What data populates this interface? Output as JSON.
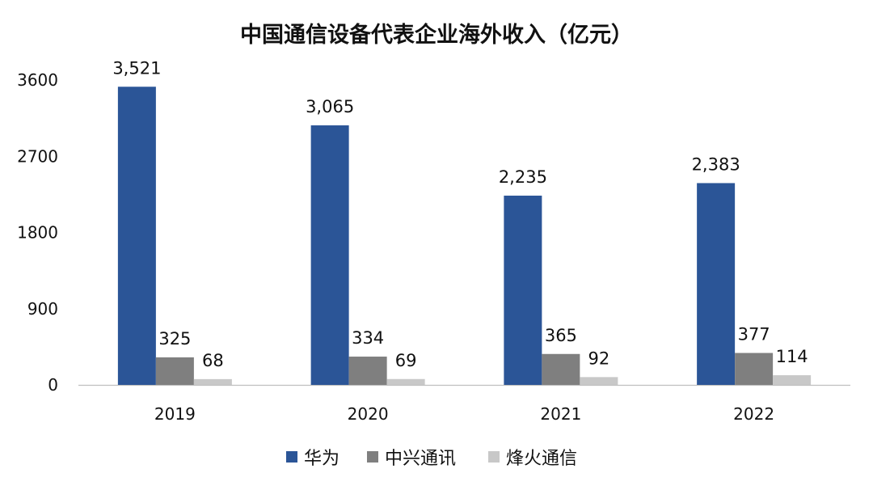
{
  "chart_data": {
    "type": "bar",
    "title": "中国通信设备代表企业海外收入（亿元）",
    "xlabel": "",
    "ylabel": "",
    "categories": [
      "2019",
      "2020",
      "2021",
      "2022"
    ],
    "series": [
      {
        "name": "华为",
        "values": [
          3521,
          3065,
          2235,
          2383
        ],
        "labels": [
          "3,521",
          "3,065",
          "2,235",
          "2,383"
        ],
        "color": "#2B5597"
      },
      {
        "name": "中兴通讯",
        "values": [
          325,
          334,
          365,
          377
        ],
        "labels": [
          "325",
          "334",
          "365",
          "377"
        ],
        "color": "#7F7F7F"
      },
      {
        "name": "烽火通信",
        "values": [
          68,
          69,
          92,
          114
        ],
        "labels": [
          "68",
          "69",
          "92",
          "114"
        ],
        "color": "#C8C8C8"
      }
    ],
    "y_ticks": [
      "0",
      "900",
      "1800",
      "2700",
      "3600"
    ],
    "y_tick_values": [
      0,
      900,
      1800,
      2700,
      3600
    ],
    "ylim": [
      0,
      3600
    ],
    "grid": false,
    "legend_position": "bottom"
  }
}
